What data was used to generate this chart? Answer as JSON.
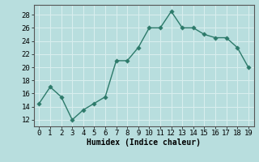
{
  "x": [
    0,
    1,
    2,
    3,
    4,
    5,
    6,
    7,
    8,
    9,
    10,
    11,
    12,
    13,
    14,
    15,
    16,
    17,
    18,
    19
  ],
  "y": [
    14.5,
    17.0,
    15.5,
    12.0,
    13.5,
    14.5,
    15.5,
    21.0,
    21.0,
    23.0,
    26.0,
    26.0,
    28.5,
    26.0,
    26.0,
    25.0,
    24.5,
    24.5,
    23.0,
    20.0
  ],
  "line_color": "#2d7a6a",
  "marker_color": "#2d7a6a",
  "bg_color": "#b8dede",
  "grid_color": "#d8eeee",
  "xlabel": "Humidex (Indice chaleur)",
  "xlabel_fontsize": 7,
  "ylabel_ticks": [
    12,
    14,
    16,
    18,
    20,
    22,
    24,
    26,
    28
  ],
  "ylim": [
    11.0,
    29.5
  ],
  "xlim": [
    -0.5,
    19.5
  ],
  "xticks": [
    0,
    1,
    2,
    3,
    4,
    5,
    6,
    7,
    8,
    9,
    10,
    11,
    12,
    13,
    14,
    15,
    16,
    17,
    18,
    19
  ],
  "tick_fontsize": 6.5,
  "line_width": 1.0,
  "marker_size": 2.8
}
